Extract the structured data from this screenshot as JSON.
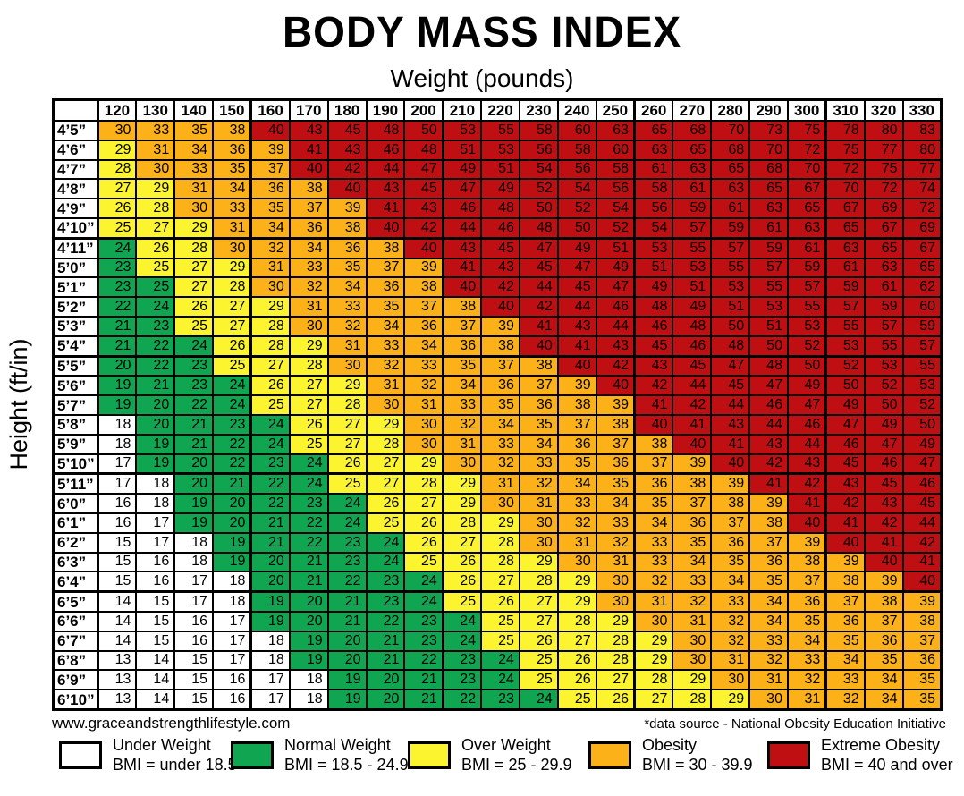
{
  "page": {
    "title": "BODY MASS INDEX",
    "weight_axis_label": "Weight (pounds)",
    "height_axis_label": "Height (ft/in)",
    "website": "www.graceandstrengthlifestyle.com",
    "data_source_note": "*data source - National Obesity Education Initiative"
  },
  "color_key": {
    "w": "#FFFFFF",
    "g": "#10A651",
    "y": "#FBF42F",
    "o": "#FBB117",
    "r": "#BF0F12"
  },
  "legend": [
    {
      "label": "Under Weight",
      "range": "BMI = under 18.5",
      "color": "#FFFFFF",
      "code": "w"
    },
    {
      "label": "Normal Weight",
      "range": "BMI = 18.5 - 24.9",
      "color": "#10A651",
      "code": "g"
    },
    {
      "label": "Over Weight",
      "range": "BMI = 25 - 29.9",
      "color": "#FBF42F",
      "code": "y"
    },
    {
      "label": "Obesity",
      "range": "BMI = 30 - 39.9",
      "color": "#FBB117",
      "code": "o"
    },
    {
      "label": "Extreme Obesity",
      "range": "BMI = 40 and over",
      "color": "#BF0F12",
      "code": "r"
    }
  ],
  "chart_data": {
    "type": "heatmap",
    "title": "BODY MASS INDEX",
    "xlabel": "Weight (pounds)",
    "ylabel": "Height (ft/in)",
    "x_axis": {
      "label": "Weight (pounds)",
      "values": [
        120,
        130,
        140,
        150,
        160,
        170,
        180,
        190,
        200,
        210,
        220,
        230,
        240,
        250,
        260,
        270,
        280,
        290,
        300,
        310,
        320,
        330
      ]
    },
    "y_axis": {
      "label": "Height (ft/in)",
      "values": [
        "4’5”",
        "4’6”",
        "4’7”",
        "4’8”",
        "4’9”",
        "4’10”",
        "4’11”",
        "5’0”",
        "5’1”",
        "5’2”",
        "5’3”",
        "5’4”",
        "5’5”",
        "5’6”",
        "5’7”",
        "5’8”",
        "5’9”",
        "5’10”",
        "5’11”",
        "6’0”",
        "6’1”",
        "6’2”",
        "6’3”",
        "6’4”",
        "6’5”",
        "6’6”",
        "6’7”",
        "6’8”",
        "6’9”",
        "6’10”"
      ]
    },
    "rows": [
      {
        "height": "4’5”",
        "values": [
          30,
          33,
          35,
          38,
          40,
          43,
          45,
          48,
          50,
          53,
          55,
          58,
          60,
          63,
          65,
          68,
          70,
          73,
          75,
          78,
          80,
          83
        ],
        "colors": "oooorrrrrrrrrrrrrrrrrr"
      },
      {
        "height": "4’6”",
        "values": [
          29,
          31,
          34,
          36,
          39,
          41,
          43,
          46,
          48,
          51,
          53,
          56,
          58,
          60,
          63,
          65,
          68,
          70,
          72,
          75,
          77,
          80
        ],
        "colors": "yoooorrrrrrrrrrrrrrrrr"
      },
      {
        "height": "4’7”",
        "values": [
          28,
          30,
          33,
          35,
          37,
          40,
          42,
          44,
          47,
          49,
          51,
          54,
          56,
          58,
          61,
          63,
          65,
          68,
          70,
          72,
          75,
          77
        ],
        "colors": "yoooorrrrrrrrrrrrrrrrr"
      },
      {
        "height": "4’8”",
        "values": [
          27,
          29,
          31,
          34,
          36,
          38,
          40,
          43,
          45,
          47,
          49,
          52,
          54,
          56,
          58,
          61,
          63,
          65,
          67,
          70,
          72,
          74
        ],
        "colors": "yyoooorrrrrrrrrrrrrrrr"
      },
      {
        "height": "4’9”",
        "values": [
          26,
          28,
          30,
          33,
          35,
          37,
          39,
          41,
          43,
          46,
          48,
          50,
          52,
          54,
          56,
          59,
          61,
          63,
          65,
          67,
          69,
          72
        ],
        "colors": "yyooooorrrrrrrrrrrrrrr"
      },
      {
        "height": "4’10”",
        "values": [
          25,
          27,
          29,
          31,
          34,
          36,
          38,
          40,
          42,
          44,
          46,
          48,
          50,
          52,
          54,
          57,
          59,
          61,
          63,
          65,
          67,
          69
        ],
        "colors": "yyyoooorrrrrrrrrrrrrrr"
      },
      {
        "height": "4’11”",
        "values": [
          24,
          26,
          28,
          30,
          32,
          34,
          36,
          38,
          40,
          43,
          45,
          47,
          49,
          51,
          53,
          55,
          57,
          59,
          61,
          63,
          65,
          67
        ],
        "colors": "gyyooooorrrrrrrrrrrrrr"
      },
      {
        "height": "5’0”",
        "values": [
          23,
          25,
          27,
          29,
          31,
          33,
          35,
          37,
          39,
          41,
          43,
          45,
          47,
          49,
          51,
          53,
          55,
          57,
          59,
          61,
          63,
          65
        ],
        "colors": "gyyyooooorrrrrrrrrrrrr"
      },
      {
        "height": "5’1”",
        "values": [
          23,
          25,
          27,
          28,
          30,
          32,
          34,
          36,
          38,
          40,
          42,
          44,
          45,
          47,
          49,
          51,
          53,
          55,
          57,
          59,
          61,
          62
        ],
        "colors": "ggyyooooorrrrrrrrrrrrr"
      },
      {
        "height": "5’2”",
        "values": [
          22,
          24,
          26,
          27,
          29,
          31,
          33,
          35,
          37,
          38,
          40,
          42,
          44,
          46,
          48,
          49,
          51,
          53,
          55,
          57,
          59,
          60
        ],
        "colors": "ggyyyooooorrrrrrrrrrrr"
      },
      {
        "height": "5’3”",
        "values": [
          21,
          23,
          25,
          27,
          28,
          30,
          32,
          34,
          36,
          37,
          39,
          41,
          43,
          44,
          46,
          48,
          50,
          51,
          53,
          55,
          57,
          59
        ],
        "colors": "ggyyyoooooorrrrrrrrrrr"
      },
      {
        "height": "5’4”",
        "values": [
          21,
          22,
          24,
          26,
          28,
          29,
          31,
          33,
          34,
          36,
          38,
          40,
          41,
          43,
          45,
          46,
          48,
          50,
          52,
          53,
          55,
          57
        ],
        "colors": "gggyyyooooorrrrrrrrrrr"
      },
      {
        "height": "5’5”",
        "values": [
          20,
          22,
          23,
          25,
          27,
          28,
          30,
          32,
          33,
          35,
          37,
          38,
          40,
          42,
          43,
          45,
          47,
          48,
          50,
          52,
          53,
          55
        ],
        "colors": "gggyyyoooooorrrrrrrrrr"
      },
      {
        "height": "5’6”",
        "values": [
          19,
          21,
          23,
          24,
          26,
          27,
          29,
          31,
          32,
          34,
          36,
          37,
          39,
          40,
          42,
          44,
          45,
          47,
          49,
          50,
          52,
          53
        ],
        "colors": "ggggyyyoooooorrrrrrrrr"
      },
      {
        "height": "5’7”",
        "values": [
          19,
          20,
          22,
          24,
          25,
          27,
          28,
          30,
          31,
          33,
          35,
          36,
          38,
          39,
          41,
          42,
          44,
          46,
          47,
          49,
          50,
          52
        ],
        "colors": "ggggyyyooooooorrrrrrrr"
      },
      {
        "height": "5’8”",
        "values": [
          18,
          20,
          21,
          23,
          24,
          26,
          27,
          29,
          30,
          32,
          34,
          35,
          37,
          38,
          40,
          41,
          43,
          44,
          46,
          47,
          49,
          50
        ],
        "colors": "wggggyyyoooooorrrrrrrr"
      },
      {
        "height": "5’9”",
        "values": [
          18,
          19,
          21,
          22,
          24,
          25,
          27,
          28,
          30,
          31,
          33,
          34,
          36,
          37,
          38,
          40,
          41,
          43,
          44,
          46,
          47,
          49
        ],
        "colors": "wggggyyyooooooorrrrrrr"
      },
      {
        "height": "5’10”",
        "values": [
          17,
          19,
          20,
          22,
          23,
          24,
          26,
          27,
          29,
          30,
          32,
          33,
          35,
          36,
          37,
          39,
          40,
          42,
          43,
          45,
          46,
          47
        ],
        "colors": "wgggggyyyooooooorrrrrr"
      },
      {
        "height": "5’11”",
        "values": [
          17,
          18,
          20,
          21,
          22,
          24,
          25,
          27,
          28,
          29,
          31,
          32,
          34,
          35,
          36,
          38,
          39,
          41,
          42,
          43,
          45,
          46
        ],
        "colors": "wwggggyyyyooooooorrrrr"
      },
      {
        "height": "6’0”",
        "values": [
          16,
          18,
          19,
          20,
          22,
          23,
          24,
          26,
          27,
          29,
          30,
          31,
          33,
          34,
          35,
          37,
          38,
          39,
          41,
          42,
          43,
          45
        ],
        "colors": "wwgggggyyyoooooooorrrr"
      },
      {
        "height": "6’1”",
        "values": [
          16,
          17,
          19,
          20,
          21,
          22,
          24,
          25,
          26,
          28,
          29,
          30,
          32,
          33,
          34,
          36,
          37,
          38,
          40,
          41,
          42,
          44
        ],
        "colors": "wwgggggyyyyooooooorrrr"
      },
      {
        "height": "6’2”",
        "values": [
          15,
          17,
          18,
          19,
          21,
          22,
          23,
          24,
          26,
          27,
          28,
          30,
          31,
          32,
          33,
          35,
          36,
          37,
          39,
          40,
          41,
          42
        ],
        "colors": "wwwgggggyyyoooooooorrr"
      },
      {
        "height": "6’3”",
        "values": [
          15,
          16,
          18,
          19,
          20,
          21,
          23,
          24,
          25,
          26,
          28,
          29,
          30,
          31,
          33,
          34,
          35,
          36,
          38,
          39,
          40,
          41
        ],
        "colors": "wwwgggggyyyyoooooooorr"
      },
      {
        "height": "6’4”",
        "values": [
          15,
          16,
          17,
          18,
          20,
          21,
          22,
          23,
          24,
          26,
          27,
          28,
          29,
          30,
          32,
          33,
          34,
          35,
          37,
          38,
          39,
          40
        ],
        "colors": "wwwwgggggyyyyoooooooor"
      },
      {
        "height": "6’5”",
        "values": [
          14,
          15,
          17,
          18,
          19,
          20,
          21,
          23,
          24,
          25,
          26,
          27,
          29,
          30,
          31,
          32,
          33,
          34,
          36,
          37,
          38,
          39
        ],
        "colors": "wwwwgggggyyyyooooooooo"
      },
      {
        "height": "6’6”",
        "values": [
          14,
          15,
          16,
          17,
          19,
          20,
          21,
          22,
          23,
          24,
          25,
          27,
          28,
          29,
          30,
          31,
          32,
          34,
          35,
          36,
          37,
          38
        ],
        "colors": "wwwwggggggyyyyoooooooo"
      },
      {
        "height": "6’7”",
        "values": [
          14,
          15,
          16,
          17,
          18,
          19,
          20,
          21,
          23,
          24,
          25,
          26,
          27,
          28,
          29,
          30,
          32,
          33,
          34,
          35,
          36,
          37
        ],
        "colors": "wwwwwgggggyyyyyooooooo"
      },
      {
        "height": "6’8”",
        "values": [
          13,
          14,
          15,
          17,
          18,
          19,
          20,
          21,
          22,
          23,
          24,
          25,
          26,
          28,
          29,
          30,
          31,
          32,
          33,
          34,
          35,
          36
        ],
        "colors": "wwwwwggggggyyyyooooooo"
      },
      {
        "height": "6’9”",
        "values": [
          13,
          14,
          15,
          16,
          17,
          18,
          19,
          20,
          21,
          23,
          24,
          25,
          26,
          27,
          28,
          29,
          30,
          31,
          32,
          33,
          34,
          35
        ],
        "colors": "wwwwwwgggggyyyyyoooooo"
      },
      {
        "height": "6’10”",
        "values": [
          13,
          14,
          15,
          16,
          17,
          18,
          19,
          20,
          21,
          22,
          23,
          24,
          25,
          26,
          27,
          28,
          29,
          30,
          31,
          32,
          34,
          35
        ],
        "colors": "wwwwwwggggggyyyyyooooo"
      }
    ]
  }
}
